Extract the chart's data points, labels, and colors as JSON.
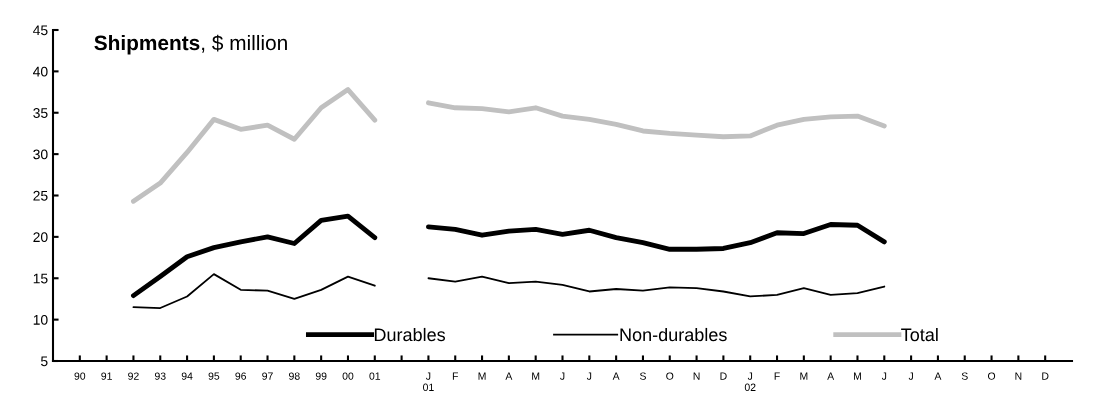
{
  "chart_data": {
    "type": "line",
    "title": "Shipments, $ million",
    "categories": [
      "90",
      "91",
      "92",
      "93",
      "94",
      "95",
      "96",
      "97",
      "98",
      "99",
      "00",
      "01",
      null,
      "J\n01",
      "F",
      "M",
      "A",
      "M",
      "J",
      "J",
      "A",
      "S",
      "O",
      "N",
      "D",
      "J\n02",
      "F",
      "M",
      "A",
      "M",
      "J",
      "J",
      "A",
      "S",
      "O",
      "N",
      "D"
    ],
    "series": [
      {
        "name": "Durables",
        "color": "#000000",
        "values": [
          null,
          null,
          12.9,
          15.2,
          17.6,
          18.7,
          19.4,
          20.0,
          19.2,
          22.0,
          22.5,
          19.9,
          null,
          21.2,
          20.9,
          20.2,
          20.7,
          20.9,
          20.3,
          20.8,
          19.9,
          19.3,
          18.5,
          18.5,
          18.6,
          19.3,
          20.5,
          20.4,
          21.5,
          21.4,
          19.4,
          null,
          null,
          null,
          null,
          null,
          null
        ]
      },
      {
        "name": "Non-durables",
        "color": "#000000",
        "values": [
          null,
          null,
          11.5,
          11.4,
          12.8,
          15.5,
          13.6,
          13.5,
          12.5,
          13.6,
          15.2,
          14.1,
          null,
          15.0,
          14.6,
          15.2,
          14.4,
          14.6,
          14.2,
          13.4,
          13.7,
          13.5,
          13.9,
          13.8,
          13.4,
          12.8,
          13.0,
          13.8,
          13.0,
          13.2,
          14.0,
          null,
          null,
          null,
          null,
          null,
          null
        ]
      },
      {
        "name": "Total",
        "color": "#c0c0c0",
        "values": [
          null,
          null,
          24.3,
          26.5,
          30.2,
          34.2,
          33.0,
          33.5,
          31.8,
          35.6,
          37.8,
          34.1,
          null,
          36.2,
          35.6,
          35.5,
          35.1,
          35.6,
          34.6,
          34.2,
          33.6,
          32.8,
          32.5,
          32.3,
          32.1,
          32.2,
          33.5,
          34.2,
          34.5,
          34.6,
          33.4,
          null,
          null,
          null,
          null,
          null,
          null
        ]
      }
    ],
    "ylim": [
      5,
      45
    ],
    "yticks": [
      5,
      10,
      15,
      20,
      25,
      30,
      35,
      40,
      45
    ],
    "grid": false,
    "legend": "bottom",
    "marker": "none",
    "line_style": "solid"
  }
}
